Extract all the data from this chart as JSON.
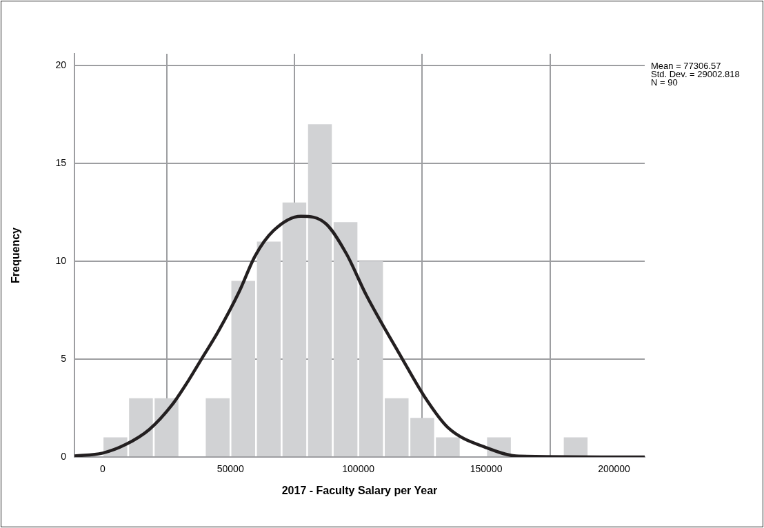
{
  "chart_data": {
    "type": "histogram",
    "xlabel": "2017 - Faculty Salary per Year",
    "ylabel": "Frequency",
    "bins": [
      0,
      10000,
      20000,
      30000,
      40000,
      50000,
      60000,
      70000,
      80000,
      90000,
      100000,
      110000,
      120000,
      130000,
      140000,
      150000,
      160000,
      170000,
      180000,
      190000
    ],
    "values": [
      1,
      3,
      3,
      0,
      3,
      9,
      11,
      13,
      17,
      12,
      10,
      3,
      2,
      1,
      0,
      1,
      0,
      0,
      1
    ],
    "color": "#d1d2d4",
    "series": [
      {
        "type": "line",
        "color": "#231f20",
        "x": [
          -11000,
          0,
          8900,
          18300,
          27200,
          33400,
          38800,
          45300,
          53400,
          59600,
          66800,
          77600,
          87300,
          95400,
          103000,
          117000,
          126100,
          135000,
          150400,
          162800,
          212000
        ],
        "values": [
          0.05,
          0.2,
          0.63,
          1.41,
          2.67,
          3.87,
          5.03,
          6.43,
          8.44,
          10.26,
          11.56,
          12.3,
          11.92,
          10.37,
          8.3,
          5.06,
          3.04,
          1.51,
          0.46,
          0.04,
          0
        ]
      }
    ],
    "xlim": [
      -11000,
      212000
    ],
    "xticks": [
      0,
      50000,
      100000,
      150000,
      200000
    ],
    "ylim": [
      0,
      20.6
    ],
    "yticks": [
      0,
      5,
      10,
      15,
      20
    ],
    "grid": true,
    "legend": false,
    "marker": "none",
    "annotations": [
      "Mean = 77306.57",
      "Std. Dev. = 29002.818",
      "N = 90"
    ]
  }
}
